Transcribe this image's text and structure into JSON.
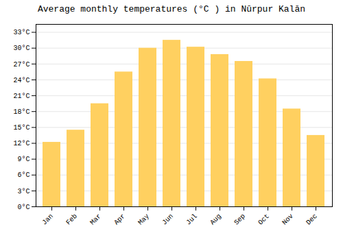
{
  "chart_data": {
    "type": "bar",
    "title": "Average monthly temperatures (°C ) in Nūrpur Kalān",
    "categories": [
      "Jan",
      "Feb",
      "Mar",
      "Apr",
      "May",
      "Jun",
      "Jul",
      "Aug",
      "Sep",
      "Oct",
      "Nov",
      "Dec"
    ],
    "values": [
      12.2,
      14.5,
      19.5,
      25.5,
      30.0,
      31.5,
      30.2,
      28.8,
      27.5,
      24.2,
      18.5,
      13.5
    ],
    "color": "#FFD060",
    "ylim": [
      0,
      34.5
    ],
    "yticks": [
      {
        "value": 0,
        "label": "0°C"
      },
      {
        "value": 3,
        "label": "3°C"
      },
      {
        "value": 6,
        "label": "6°C"
      },
      {
        "value": 9,
        "label": "9°C"
      },
      {
        "value": 12,
        "label": "12°C"
      },
      {
        "value": 15,
        "label": "15°C"
      },
      {
        "value": 18,
        "label": "18°C"
      },
      {
        "value": 21,
        "label": "21°C"
      },
      {
        "value": 24,
        "label": "24°C"
      },
      {
        "value": 27,
        "label": "27°C"
      },
      {
        "value": 30,
        "label": "30°C"
      },
      {
        "value": 33,
        "label": "33°C"
      }
    ],
    "grid": true
  }
}
